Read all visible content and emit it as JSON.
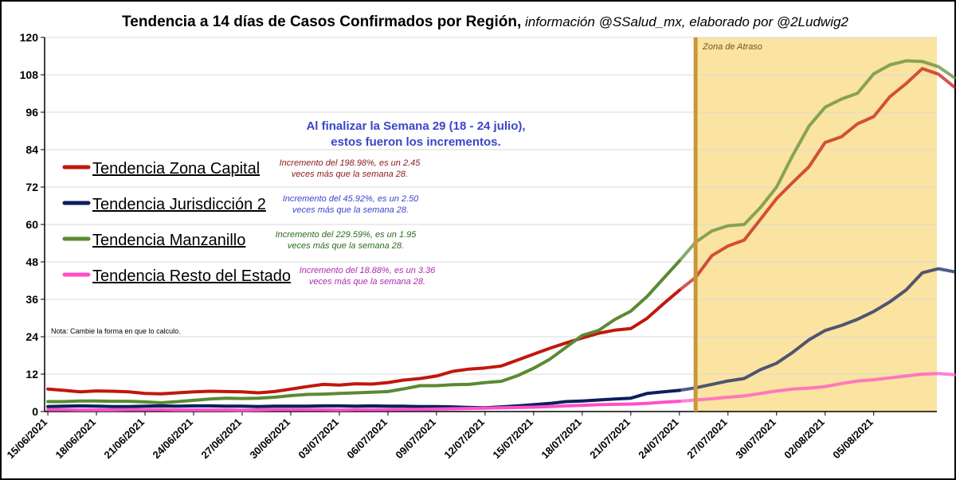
{
  "title": {
    "main": "Tendencia a 14 días de Casos Confirmados por Región,",
    "sub": " información @SSalud_mx, elaborado por @2Ludwig2"
  },
  "annotation": {
    "line1": "Al finalizar la Semana 29 (18 - 24 julio),",
    "line2": "estos fueron los incrementos."
  },
  "note": "Nota: Cambie la forma en que lo calculo.",
  "zone_label": "Zona de Atraso",
  "colors": {
    "zona_capital": "#c0180c",
    "jurisdiccion2": "#0d1f5c",
    "manzanillo": "#5a8a32",
    "resto": "#ff4fc8",
    "zone_fill": "#fbe3a1",
    "zone_line": "#c9973a"
  },
  "legend": [
    {
      "label": "Tendencia Zona Capital",
      "note1": "Incremento del 198.98%, es un 2.45",
      "note2": "veces más que la semana 28.",
      "color": "#c0180c",
      "note_color": "#8b1a1a"
    },
    {
      "label": "Tendencia Jurisdicción 2",
      "note1": "Incremento del 45.92%, es un  2.50",
      "note2": "veces más que la semana 28.",
      "color": "#0d1f5c",
      "note_color": "#3b46c8"
    },
    {
      "label": "Tendencia Manzanillo",
      "note1": "Incremento del 229.59%, es un 1.95",
      "note2": "veces más que la semana 28.",
      "color": "#5a8a32",
      "note_color": "#2e6b1f"
    },
    {
      "label": "Tendencia Resto del Estado",
      "note1": "Incremento del 18.88%, es un 3.36",
      "note2": "veces más que la semana 28.",
      "color": "#ff4fc8",
      "note_color": "#b02ab0"
    }
  ],
  "chart_data": {
    "type": "line",
    "title": "Tendencia a 14 días de Casos Confirmados por Región",
    "ylim": [
      0,
      120
    ],
    "yticks": [
      0,
      12,
      24,
      36,
      48,
      60,
      72,
      84,
      96,
      108,
      120
    ],
    "xticks": [
      "15/06/2021",
      "18/06/2021",
      "21/06/2021",
      "24/06/2021",
      "27/06/2021",
      "30/06/2021",
      "03/07/2021",
      "06/07/2021",
      "09/07/2021",
      "12/07/2021",
      "15/07/2021",
      "18/07/2021",
      "21/07/2021",
      "24/07/2021",
      "27/07/2021",
      "30/07/2021",
      "02/08/2021",
      "05/08/2021"
    ],
    "x_start": "15/06/2021",
    "x_end": "08/08/2021",
    "delay_zone_start": "25/07/2021",
    "series": [
      {
        "name": "Tendencia Zona Capital",
        "key": "zona_capital",
        "values": [
          7.2,
          6.8,
          6.3,
          6.6,
          6.5,
          6.3,
          5.8,
          5.7,
          6.0,
          6.3,
          6.5,
          6.4,
          6.3,
          6.0,
          6.4,
          7.2,
          8.0,
          8.7,
          8.5,
          8.9,
          8.8,
          9.3,
          10.1,
          10.6,
          11.4,
          12.9,
          13.6,
          14.0,
          14.6,
          16.5,
          18.4,
          20.3,
          22.0,
          23.6,
          25.1,
          26.1,
          26.6,
          29.9,
          34.5,
          38.9,
          43.0,
          50.0,
          53.1,
          55.0,
          61.6,
          68.3,
          73.5,
          78.5,
          86.3,
          88.1,
          92.3,
          94.6,
          101.0,
          105.2,
          110.0,
          108.2,
          104.0
        ]
      },
      {
        "name": "Tendencia Jurisdicción 2",
        "key": "jurisdiccion2",
        "values": [
          1.6,
          1.7,
          1.8,
          1.7,
          1.6,
          1.6,
          1.7,
          1.8,
          1.7,
          1.8,
          1.8,
          1.7,
          1.7,
          1.6,
          1.7,
          1.7,
          1.7,
          1.8,
          1.8,
          1.7,
          1.8,
          1.7,
          1.7,
          1.6,
          1.6,
          1.5,
          1.3,
          1.2,
          1.5,
          1.8,
          2.2,
          2.6,
          3.2,
          3.4,
          3.7,
          4.0,
          4.3,
          5.8,
          6.3,
          6.8,
          7.6,
          8.7,
          9.8,
          10.6,
          13.4,
          15.5,
          19.0,
          23.0,
          26.0,
          27.6,
          29.6,
          32.1,
          35.2,
          39.0,
          44.5,
          45.8,
          44.8
        ]
      },
      {
        "name": "Tendencia Manzanillo",
        "key": "manzanillo",
        "values": [
          3.2,
          3.2,
          3.4,
          3.4,
          3.3,
          3.3,
          3.1,
          2.8,
          3.2,
          3.6,
          4.0,
          4.3,
          4.2,
          4.3,
          4.6,
          5.1,
          5.5,
          5.6,
          5.8,
          6.0,
          6.2,
          6.4,
          7.3,
          8.3,
          8.3,
          8.6,
          8.7,
          9.3,
          9.7,
          11.5,
          13.9,
          16.8,
          20.6,
          24.4,
          26.0,
          29.5,
          32.2,
          36.9,
          42.6,
          48.3,
          54.3,
          57.9,
          59.6,
          60.0,
          65.4,
          72.0,
          82.2,
          91.5,
          97.6,
          100.2,
          102.1,
          108.3,
          111.2,
          112.5,
          112.3,
          110.6,
          107.0
        ]
      },
      {
        "name": "Tendencia Resto del Estado",
        "key": "resto",
        "values": [
          0.6,
          0.6,
          0.5,
          0.5,
          0.5,
          0.6,
          0.6,
          0.6,
          0.5,
          0.5,
          0.5,
          0.5,
          0.4,
          0.5,
          0.6,
          0.6,
          0.6,
          0.6,
          0.5,
          0.6,
          0.6,
          0.6,
          0.7,
          0.7,
          0.8,
          0.9,
          1.0,
          1.1,
          1.2,
          1.3,
          1.4,
          1.6,
          1.8,
          2.0,
          2.2,
          2.3,
          2.4,
          2.6,
          3.0,
          3.3,
          3.7,
          4.1,
          4.6,
          5.0,
          5.8,
          6.6,
          7.2,
          7.5,
          8.0,
          9.0,
          9.8,
          10.2,
          10.8,
          11.4,
          12.0,
          12.2,
          11.8
        ]
      }
    ]
  }
}
